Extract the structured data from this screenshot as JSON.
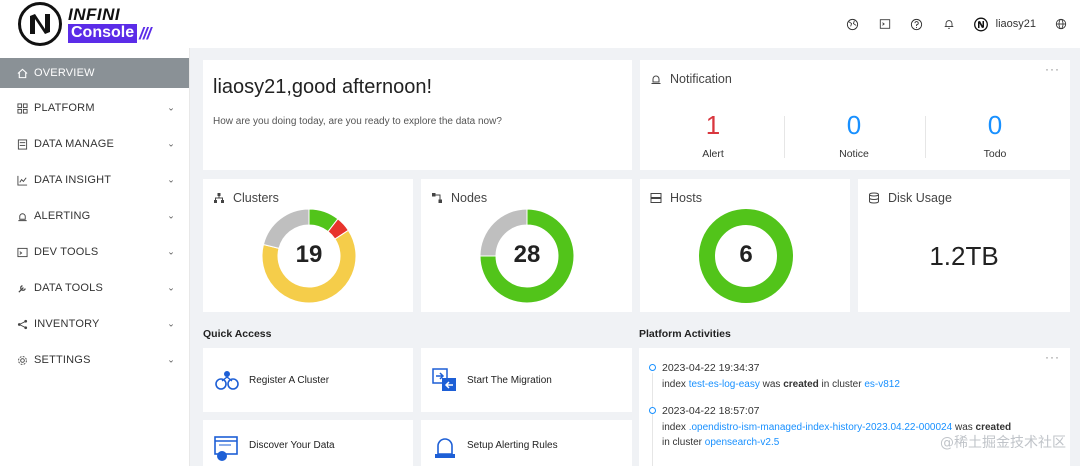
{
  "brand": {
    "line1": "INFINI",
    "line2": "Console",
    "slashes": "///"
  },
  "sidebar": {
    "items": [
      {
        "label": "OVERVIEW",
        "icon": "home-icon",
        "active": true
      },
      {
        "label": "PLATFORM",
        "icon": "platform-icon"
      },
      {
        "label": "DATA MANAGE",
        "icon": "data-manage-icon"
      },
      {
        "label": "DATA INSIGHT",
        "icon": "chart-icon"
      },
      {
        "label": "ALERTING",
        "icon": "alert-icon"
      },
      {
        "label": "DEV TOOLS",
        "icon": "terminal-icon"
      },
      {
        "label": "DATA TOOLS",
        "icon": "wrench-icon"
      },
      {
        "label": "INVENTORY",
        "icon": "share-icon"
      },
      {
        "label": "SETTINGS",
        "icon": "gear-icon"
      }
    ]
  },
  "header": {
    "username": "liaosy21"
  },
  "greeting": {
    "title": "liaosy21,good afternoon!",
    "subtitle": "How are you doing today, are you ready to explore the data now?"
  },
  "notification": {
    "title": "Notification",
    "more": "···",
    "alert": {
      "value": "1",
      "label": "Alert",
      "color": "#d9363e"
    },
    "notice": {
      "value": "0",
      "label": "Notice",
      "color": "#1890ff"
    },
    "todo": {
      "value": "0",
      "label": "Todo",
      "color": "#1890ff"
    }
  },
  "stats": {
    "clusters": {
      "title": "Clusters",
      "value": "19"
    },
    "nodes": {
      "title": "Nodes",
      "value": "28"
    },
    "hosts": {
      "title": "Hosts",
      "value": "6"
    },
    "disk": {
      "title": "Disk Usage",
      "value": "1.2TB"
    }
  },
  "chart_data": [
    {
      "type": "pie",
      "series": [
        {
          "values": [
            2,
            1,
            12,
            4
          ],
          "colors": [
            "#52c41a",
            "#e8342c",
            "#f5cd4a",
            "#bfbfbf"
          ]
        }
      ]
    },
    {
      "type": "pie",
      "series": [
        {
          "values": [
            21,
            7
          ],
          "colors": [
            "#52c41a",
            "#bfbfbf"
          ]
        }
      ]
    },
    {
      "type": "pie",
      "series": [
        {
          "values": [
            6
          ],
          "colors": [
            "#52c41a"
          ]
        }
      ]
    }
  ],
  "quick_access": {
    "title": "Quick Access",
    "items": [
      {
        "label": "Register A Cluster"
      },
      {
        "label": "Start The Migration"
      },
      {
        "label": "Discover Your Data"
      },
      {
        "label": "Setup Alerting Rules"
      }
    ]
  },
  "activities": {
    "title": "Platform Activities",
    "more": "···",
    "items": [
      {
        "time": "2023-04-22 19:34:37",
        "prefix": "index",
        "target": "test-es-log-easy",
        "mid": "was",
        "verb": "created",
        "in_cluster": "in cluster",
        "cluster": "es-v812"
      },
      {
        "time": "2023-04-22 18:57:07",
        "prefix": "index",
        "target": ".opendistro-ism-managed-index-history-2023.04.22-000024",
        "mid": "was",
        "verb": "created",
        "in_cluster": "in cluster",
        "cluster": "opensearch-v2.5"
      }
    ]
  },
  "watermark": "@稀土掘金技术社区"
}
